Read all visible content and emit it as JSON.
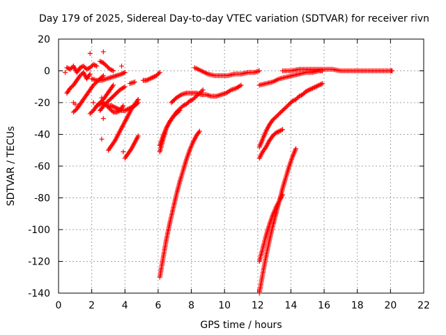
{
  "chart_data": {
    "type": "scatter",
    "title": "Day 179 of 2025, Sidereal Day-to-day VTEC variation (SDTVAR) for receiver rivn",
    "xlabel": "GPS time / hours",
    "ylabel": "SDTVAR / TECUs",
    "xlim": [
      0,
      22
    ],
    "ylim": [
      -140,
      20
    ],
    "xticks": [
      0,
      2,
      4,
      6,
      8,
      10,
      12,
      14,
      16,
      18,
      20,
      22
    ],
    "yticks": [
      -140,
      -120,
      -100,
      -80,
      -60,
      -40,
      -20,
      0,
      20
    ],
    "grid": true,
    "marker": "plus",
    "color": "#ff0000",
    "series": [
      {
        "x": [
          0.5,
          0.7,
          0.9,
          1.1,
          1.3,
          1.5,
          1.7,
          1.9,
          2.1,
          2.3
        ],
        "y": [
          2,
          1,
          3,
          -1,
          2,
          3,
          1,
          2,
          4,
          3
        ]
      },
      {
        "x": [
          0.5,
          0.7,
          0.9,
          1.1,
          1.3,
          1.5,
          1.7,
          1.9
        ],
        "y": [
          -14,
          -11,
          -9,
          -6,
          -3,
          -1,
          -5,
          -2
        ]
      },
      {
        "x": [
          0.9,
          1.1,
          1.3,
          1.5,
          1.7,
          1.9,
          2.1,
          2.3,
          2.5,
          2.7
        ],
        "y": [
          -26,
          -24,
          -21,
          -18,
          -15,
          -12,
          -9,
          -7,
          -5,
          -3
        ]
      },
      {
        "x": [
          1.9,
          2.1,
          2.3,
          2.5,
          2.7,
          2.9,
          3.1,
          3.3
        ],
        "y": [
          -27,
          -25,
          -22,
          -20,
          -18,
          -15,
          -12,
          -9
        ]
      },
      {
        "x": [
          2.3,
          2.5,
          2.7,
          2.9,
          3.1,
          3.3,
          3.5,
          3.7,
          3.9
        ],
        "y": [
          -22,
          -21,
          -20,
          -22,
          -24,
          -26,
          -26,
          -25,
          -22
        ]
      },
      {
        "x": [
          2.5,
          2.7,
          2.9,
          3.1,
          3.3
        ],
        "y": [
          6,
          5,
          3,
          1,
          0
        ]
      },
      {
        "x": [
          2.0,
          2.3,
          2.6,
          2.9,
          3.2,
          3.5,
          3.8,
          4.0
        ],
        "y": [
          -5,
          -6,
          -6,
          -5,
          -4,
          -3,
          -2,
          -1
        ]
      },
      {
        "x": [
          2.5,
          2.8,
          3.1,
          3.4,
          3.7,
          4.0
        ],
        "y": [
          -25,
          -21,
          -18,
          -15,
          -12,
          -10
        ]
      },
      {
        "x": [
          3.0,
          3.2,
          3.4,
          3.6,
          3.8,
          4.0,
          4.2,
          4.4,
          4.6,
          4.8
        ],
        "y": [
          -50,
          -47,
          -44,
          -40,
          -36,
          -32,
          -28,
          -24,
          -21,
          -18
        ]
      },
      {
        "x": [
          3.0,
          3.2,
          3.4,
          3.6,
          3.8,
          4.0,
          4.2,
          4.4,
          4.6,
          4.8
        ],
        "y": [
          -22,
          -22,
          -23,
          -24,
          -25,
          -25,
          -24,
          -23,
          -22,
          -20
        ]
      },
      {
        "x": [
          4.0,
          4.2,
          4.4,
          4.6,
          4.8
        ],
        "y": [
          -55,
          -52,
          -49,
          -45,
          -41
        ]
      },
      {
        "x": [
          4.3,
          4.6
        ],
        "y": [
          -8,
          -7
        ]
      },
      {
        "x": [
          5.1,
          5.3,
          5.5,
          5.7,
          5.9,
          6.1
        ],
        "y": [
          -6,
          -6,
          -5,
          -4,
          -3,
          -1
        ]
      },
      {
        "x": [
          6.1,
          6.3,
          6.5,
          6.7,
          6.9,
          7.1,
          7.3
        ],
        "y": [
          -51,
          -43,
          -36,
          -32,
          -29,
          -27,
          -25
        ]
      },
      {
        "x": [
          6.1,
          6.3,
          6.5,
          6.7,
          6.9,
          7.1,
          7.3,
          7.5,
          7.7,
          7.9,
          8.1,
          8.3,
          8.5,
          8.7
        ],
        "y": [
          -47,
          -41,
          -36,
          -32,
          -29,
          -26,
          -24,
          -22,
          -21,
          -19,
          -18,
          -16,
          -14,
          -12
        ]
      },
      {
        "x": [
          6.1,
          6.3,
          6.5,
          6.7,
          6.9,
          7.1,
          7.3,
          7.5,
          7.7,
          7.9,
          8.1,
          8.3,
          8.5
        ],
        "y": [
          -130,
          -118,
          -106,
          -96,
          -87,
          -78,
          -70,
          -63,
          -56,
          -50,
          -45,
          -41,
          -38
        ]
      },
      {
        "x": [
          6.8,
          7.1,
          7.4,
          7.7,
          8.0,
          8.3,
          8.6,
          8.9,
          9.2,
          9.5,
          9.8,
          10.1,
          10.4,
          10.7,
          11.0
        ],
        "y": [
          -20,
          -17,
          -15,
          -14,
          -14,
          -14,
          -15,
          -15,
          -16,
          -16,
          -15,
          -14,
          -12,
          -11,
          -9
        ]
      },
      {
        "x": [
          8.2,
          8.6,
          9.0,
          9.4,
          9.8,
          10.2,
          10.6,
          11.0,
          11.4,
          11.8,
          12.1
        ],
        "y": [
          2,
          0,
          -2,
          -3,
          -3,
          -3,
          -2,
          -2,
          -1,
          -1,
          0
        ]
      },
      {
        "x": [
          12.1,
          12.3,
          12.5,
          12.7,
          12.9,
          13.1,
          13.3,
          13.5
        ],
        "y": [
          -55,
          -51,
          -48,
          -44,
          -41,
          -39,
          -38,
          -37
        ]
      },
      {
        "x": [
          12.1,
          12.3,
          12.5,
          12.7,
          12.9,
          13.1,
          13.3,
          13.5,
          13.7,
          13.9,
          14.1,
          14.3,
          14.5,
          14.7,
          14.9,
          15.1,
          15.3,
          15.5,
          15.7,
          15.9
        ],
        "y": [
          -48,
          -43,
          -38,
          -34,
          -31,
          -29,
          -27,
          -25,
          -23,
          -21,
          -19,
          -18,
          -16,
          -15,
          -13,
          -12,
          -11,
          -10,
          -9,
          -8
        ]
      },
      {
        "x": [
          12.1,
          12.5,
          12.9,
          13.3,
          13.7,
          14.1,
          14.5,
          14.9,
          15.3,
          15.7,
          15.9
        ],
        "y": [
          -9,
          -8,
          -7,
          -5,
          -4,
          -3,
          -2,
          -1,
          -1,
          0,
          0
        ]
      },
      {
        "x": [
          12.1,
          12.3,
          12.5,
          12.7,
          12.9,
          13.1,
          13.3,
          13.5
        ],
        "y": [
          -120,
          -112,
          -104,
          -97,
          -91,
          -86,
          -82,
          -78
        ]
      },
      {
        "x": [
          12.1,
          12.3,
          12.5,
          12.7,
          12.9,
          13.1,
          13.3,
          13.5,
          13.7,
          13.9,
          14.1,
          14.3
        ],
        "y": [
          -140,
          -128,
          -117,
          -107,
          -98,
          -90,
          -82,
          -74,
          -67,
          -60,
          -54,
          -49
        ]
      },
      {
        "x": [
          13.5,
          14.0,
          14.5,
          15.0,
          15.5,
          16.0,
          16.5,
          17.0,
          17.5,
          18.0,
          18.5,
          19.0,
          19.5,
          20.0,
          20.1
        ],
        "y": [
          0,
          0,
          1,
          1,
          1,
          1,
          1,
          0,
          0,
          0,
          0,
          0,
          0,
          0,
          0
        ]
      }
    ],
    "scatter_extras": {
      "x": [
        1.9,
        2.7,
        0.4,
        1.0,
        2.6,
        3.9,
        2.7,
        2.6,
        3.8,
        2.1,
        1.2,
        0.9
      ],
      "y": [
        11,
        12,
        -1,
        -21,
        -43,
        -51,
        -30,
        -17,
        3,
        -20,
        -22,
        -20
      ]
    }
  }
}
